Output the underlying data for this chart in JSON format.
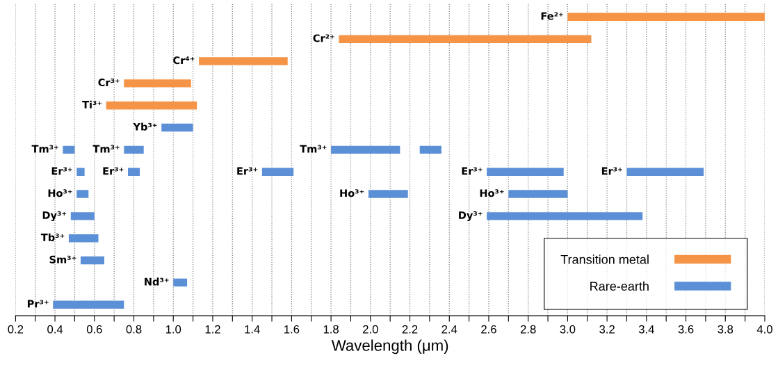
{
  "chart_data": {
    "type": "bar",
    "orientation": "horizontal",
    "xlabel": "Wavelength (μm)",
    "categories": [
      null,
      null,
      null,
      null,
      null,
      null,
      null,
      null,
      null,
      null,
      null,
      null,
      null,
      null
    ],
    "series": [
      {
        "name": "Transition metal",
        "color": "#f59446",
        "base": [
          3.0,
          1.84,
          1.13,
          0.75,
          0.66,
          null,
          null,
          null,
          null,
          null,
          null,
          null,
          null,
          null
        ],
        "values": [
          1.0,
          1.28,
          0.45,
          0.34,
          0.46,
          null,
          null,
          null,
          null,
          null,
          null,
          null,
          null,
          null
        ],
        "value_labels": [
          "Fe²⁺",
          "Cr²⁺",
          "Cr⁴⁺",
          "Cr³⁺",
          "Ti³⁺",
          null,
          null,
          null,
          null,
          null,
          null,
          null,
          null,
          null
        ]
      },
      {
        "name": "Rare-earth",
        "color": "#5b8fd6",
        "base": [
          null,
          null,
          null,
          null,
          null,
          0.94,
          0.44,
          0.51,
          0.51,
          0.48,
          0.47,
          0.53,
          1.0,
          0.39
        ],
        "values": [
          null,
          null,
          null,
          null,
          null,
          0.16,
          0.06,
          0.04,
          0.06,
          0.12,
          0.15,
          0.12,
          0.07,
          0.36
        ],
        "value_labels": [
          null,
          null,
          null,
          null,
          null,
          "Yb³⁺",
          "Tm³⁺",
          "Er³⁺",
          "Ho³⁺",
          "Dy³⁺",
          "Tb³⁺",
          "Sm³⁺",
          "Nd³⁺",
          "Pr³⁺"
        ]
      },
      {
        "color": "#5b8fd6",
        "base": [
          null,
          null,
          null,
          null,
          null,
          null,
          0.75,
          0.77,
          null,
          null,
          null,
          null,
          null,
          null
        ],
        "values": [
          null,
          null,
          null,
          null,
          null,
          null,
          0.1,
          0.06,
          null,
          null,
          null,
          null,
          null,
          null
        ],
        "value_labels": [
          null,
          null,
          null,
          null,
          null,
          null,
          "Tm³⁺",
          "Er³⁺",
          null,
          null,
          null,
          null,
          null,
          null
        ]
      },
      {
        "color": "#5b8fd6",
        "base": [
          null,
          null,
          null,
          null,
          null,
          null,
          1.8,
          1.45,
          1.99,
          2.59,
          null,
          null,
          null,
          null
        ],
        "values": [
          null,
          null,
          null,
          null,
          null,
          null,
          0.35,
          0.16,
          0.2,
          0.79,
          null,
          null,
          null,
          null
        ],
        "value_labels": [
          null,
          null,
          null,
          null,
          null,
          null,
          "Tm³⁺",
          "Er³⁺",
          "Ho³⁺",
          "Dy³⁺",
          null,
          null,
          null,
          null
        ]
      },
      {
        "color": "#5b8fd6",
        "base": [
          null,
          null,
          null,
          null,
          null,
          null,
          2.25,
          2.59,
          2.7,
          null,
          null,
          null,
          null,
          null
        ],
        "values": [
          null,
          null,
          null,
          null,
          null,
          null,
          0.11,
          0.39,
          0.3,
          null,
          null,
          null,
          null,
          null
        ],
        "value_labels": [
          null,
          null,
          null,
          null,
          null,
          null,
          null,
          "Er³⁺",
          "Ho³⁺",
          null,
          null,
          null,
          null,
          null
        ]
      },
      {
        "color": "#5b8fd6",
        "base": [
          null,
          null,
          null,
          null,
          null,
          null,
          null,
          3.3,
          null,
          null,
          null,
          null,
          null,
          null
        ],
        "values": [
          null,
          null,
          null,
          null,
          null,
          null,
          null,
          0.39,
          null,
          null,
          null,
          null,
          null,
          null
        ],
        "value_labels": [
          null,
          null,
          null,
          null,
          null,
          null,
          null,
          "Er³⁺",
          null,
          null,
          null,
          null,
          null,
          null
        ]
      }
    ],
    "xlim": [
      0.2,
      4.0
    ],
    "xticks": [
      0.2,
      {
        "value": 0.3,
        "label": null
      },
      0.4,
      {
        "value": 0.5,
        "label": null
      },
      0.6,
      {
        "value": 0.7,
        "label": null
      },
      0.8,
      {
        "value": 0.9,
        "label": null
      },
      {
        "value": 1.0,
        "label": "1.0"
      },
      {
        "value": 1.1,
        "label": null
      },
      1.2,
      {
        "value": 1.3,
        "label": null
      },
      1.4,
      {
        "value": 1.5,
        "label": null
      },
      1.6,
      {
        "value": 1.7,
        "label": null
      },
      1.8,
      {
        "value": 1.9,
        "label": null
      },
      {
        "value": 2.0,
        "label": "2.0"
      },
      {
        "value": 2.1,
        "label": null
      },
      2.2,
      {
        "value": 2.3,
        "label": null
      },
      2.4,
      {
        "value": 2.5,
        "label": null
      },
      2.6,
      {
        "value": 2.7,
        "label": null
      },
      2.8,
      {
        "value": 2.9,
        "label": null
      },
      {
        "value": 3.0,
        "label": "3.0"
      },
      {
        "value": 3.1,
        "label": null
      },
      3.2,
      {
        "value": 3.3,
        "label": null
      },
      3.4,
      {
        "value": 3.5,
        "label": null
      },
      3.6,
      {
        "value": 3.7,
        "label": null
      },
      3.8,
      {
        "value": 3.9,
        "label": null
      },
      {
        "value": 4.0,
        "label": "4.0"
      }
    ],
    "grid": "x",
    "legend": "bottom right"
  }
}
